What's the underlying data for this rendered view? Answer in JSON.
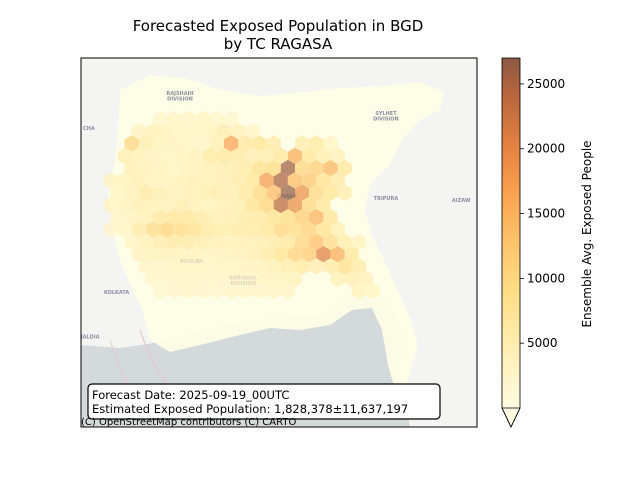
{
  "title_line1": "Forecasted Exposed Population in BGD",
  "title_line2": "by TC RAGASA",
  "colorbar": {
    "label": "Ensemble Avg. Exposed People",
    "ticks": [
      5000,
      10000,
      15000,
      20000,
      25000
    ],
    "min": 0,
    "max": 27000,
    "colors": [
      "#fffbe2",
      "#fff0b8",
      "#ffe08a",
      "#fdc26a",
      "#f9a04f",
      "#e08040",
      "#b8643c",
      "#8c5a46"
    ]
  },
  "info_box": {
    "line1": "Forecast Date: 2025-09-19_00UTC",
    "line2": "Estimated Exposed Population: 1,828,378±11,637,197"
  },
  "attribution": "(C) OpenStreetMap contributors (C) CARTO",
  "basemap_labels": [
    {
      "text": "RAJSHAHI",
      "ax": 0.25,
      "ay": 0.1
    },
    {
      "text": "DIVISION",
      "ax": 0.25,
      "ay": 0.115
    },
    {
      "text": "SYLHET",
      "ax": 0.77,
      "ay": 0.155
    },
    {
      "text": "DIVISION",
      "ax": 0.77,
      "ay": 0.17
    },
    {
      "text": "CHA",
      "ax": 0.02,
      "ay": 0.195
    },
    {
      "text": "BARISHAL",
      "ax": 0.41,
      "ay": 0.6
    },
    {
      "text": "DIVISION",
      "ax": 0.41,
      "ay": 0.615
    },
    {
      "text": "KOLKATA",
      "ax": 0.09,
      "ay": 0.64
    },
    {
      "text": "TRIPURA",
      "ax": 0.77,
      "ay": 0.385
    },
    {
      "text": "HALDIA",
      "ax": 0.02,
      "ay": 0.76
    },
    {
      "text": "KHULNA",
      "ax": 0.28,
      "ay": 0.555
    },
    {
      "text": "AIZAW",
      "ax": 0.96,
      "ay": 0.39
    },
    {
      "text": "DHAKA",
      "ax": 0.52,
      "ay": 0.38
    }
  ],
  "hexbins": [
    {
      "q": 5,
      "r": 3,
      "v": 2500
    },
    {
      "q": 6,
      "r": 3,
      "v": 3000
    },
    {
      "q": 7,
      "r": 3,
      "v": 2800
    },
    {
      "q": 8,
      "r": 3,
      "v": 3200
    },
    {
      "q": 9,
      "r": 3,
      "v": 2400
    },
    {
      "q": 10,
      "r": 3,
      "v": 2200
    },
    {
      "q": 4,
      "r": 4,
      "v": 3500
    },
    {
      "q": 5,
      "r": 4,
      "v": 4200
    },
    {
      "q": 6,
      "r": 4,
      "v": 3800
    },
    {
      "q": 7,
      "r": 4,
      "v": 3300
    },
    {
      "q": 8,
      "r": 4,
      "v": 2900
    },
    {
      "q": 9,
      "r": 4,
      "v": 3600
    },
    {
      "q": 10,
      "r": 4,
      "v": 5200
    },
    {
      "q": 11,
      "r": 4,
      "v": 4000
    },
    {
      "q": 12,
      "r": 4,
      "v": 3100
    },
    {
      "q": 3,
      "r": 5,
      "v": 9500
    },
    {
      "q": 4,
      "r": 5,
      "v": 5200
    },
    {
      "q": 5,
      "r": 5,
      "v": 3900
    },
    {
      "q": 6,
      "r": 5,
      "v": 3400
    },
    {
      "q": 7,
      "r": 5,
      "v": 3000
    },
    {
      "q": 8,
      "r": 5,
      "v": 2800
    },
    {
      "q": 9,
      "r": 5,
      "v": 4600
    },
    {
      "q": 10,
      "r": 5,
      "v": 15500
    },
    {
      "q": 11,
      "r": 5,
      "v": 6500
    },
    {
      "q": 12,
      "r": 5,
      "v": 7200
    },
    {
      "q": 13,
      "r": 5,
      "v": 5600
    },
    {
      "q": 15,
      "r": 5,
      "v": 5400
    },
    {
      "q": 16,
      "r": 5,
      "v": 6100
    },
    {
      "q": 17,
      "r": 5,
      "v": 3200
    },
    {
      "q": 3,
      "r": 6,
      "v": 4500
    },
    {
      "q": 4,
      "r": 6,
      "v": 4300
    },
    {
      "q": 5,
      "r": 6,
      "v": 3500
    },
    {
      "q": 6,
      "r": 6,
      "v": 3200
    },
    {
      "q": 7,
      "r": 6,
      "v": 3600
    },
    {
      "q": 8,
      "r": 6,
      "v": 4100
    },
    {
      "q": 9,
      "r": 6,
      "v": 6200
    },
    {
      "q": 10,
      "r": 6,
      "v": 6800
    },
    {
      "q": 11,
      "r": 6,
      "v": 5900
    },
    {
      "q": 12,
      "r": 6,
      "v": 4800
    },
    {
      "q": 13,
      "r": 6,
      "v": 5200
    },
    {
      "q": 14,
      "r": 6,
      "v": 6400
    },
    {
      "q": 15,
      "r": 6,
      "v": 14200
    },
    {
      "q": 16,
      "r": 6,
      "v": 7000
    },
    {
      "q": 17,
      "r": 6,
      "v": 5000
    },
    {
      "q": 18,
      "r": 6,
      "v": 4100
    },
    {
      "q": 3,
      "r": 7,
      "v": 4700
    },
    {
      "q": 4,
      "r": 7,
      "v": 4100
    },
    {
      "q": 5,
      "r": 7,
      "v": 3800
    },
    {
      "q": 6,
      "r": 7,
      "v": 3300
    },
    {
      "q": 7,
      "r": 7,
      "v": 3700
    },
    {
      "q": 8,
      "r": 7,
      "v": 4200
    },
    {
      "q": 9,
      "r": 7,
      "v": 4900
    },
    {
      "q": 10,
      "r": 7,
      "v": 5300
    },
    {
      "q": 11,
      "r": 7,
      "v": 6000
    },
    {
      "q": 12,
      "r": 7,
      "v": 8200
    },
    {
      "q": 13,
      "r": 7,
      "v": 8800
    },
    {
      "q": 14,
      "r": 7,
      "v": 25500
    },
    {
      "q": 15,
      "r": 7,
      "v": 9500
    },
    {
      "q": 16,
      "r": 7,
      "v": 10500
    },
    {
      "q": 17,
      "r": 7,
      "v": 13200
    },
    {
      "q": 18,
      "r": 7,
      "v": 6500
    },
    {
      "q": 2,
      "r": 8,
      "v": 3600
    },
    {
      "q": 3,
      "r": 8,
      "v": 3900
    },
    {
      "q": 4,
      "r": 8,
      "v": 4500
    },
    {
      "q": 5,
      "r": 8,
      "v": 3800
    },
    {
      "q": 6,
      "r": 8,
      "v": 3600
    },
    {
      "q": 7,
      "r": 8,
      "v": 4200
    },
    {
      "q": 8,
      "r": 8,
      "v": 4600
    },
    {
      "q": 9,
      "r": 8,
      "v": 4400
    },
    {
      "q": 10,
      "r": 8,
      "v": 4800
    },
    {
      "q": 11,
      "r": 8,
      "v": 5500
    },
    {
      "q": 12,
      "r": 8,
      "v": 7000
    },
    {
      "q": 13,
      "r": 8,
      "v": 16500
    },
    {
      "q": 14,
      "r": 8,
      "v": 24500
    },
    {
      "q": 15,
      "r": 8,
      "v": 12500
    },
    {
      "q": 16,
      "r": 8,
      "v": 11200
    },
    {
      "q": 17,
      "r": 8,
      "v": 7800
    },
    {
      "q": 18,
      "r": 8,
      "v": 5800
    },
    {
      "q": 2,
      "r": 9,
      "v": 3200
    },
    {
      "q": 3,
      "r": 9,
      "v": 4000
    },
    {
      "q": 4,
      "r": 9,
      "v": 6200
    },
    {
      "q": 5,
      "r": 9,
      "v": 5000
    },
    {
      "q": 6,
      "r": 9,
      "v": 4000
    },
    {
      "q": 7,
      "r": 9,
      "v": 4600
    },
    {
      "q": 8,
      "r": 9,
      "v": 5100
    },
    {
      "q": 9,
      "r": 9,
      "v": 5400
    },
    {
      "q": 10,
      "r": 9,
      "v": 5000
    },
    {
      "q": 11,
      "r": 9,
      "v": 6300
    },
    {
      "q": 12,
      "r": 9,
      "v": 9200
    },
    {
      "q": 13,
      "r": 9,
      "v": 12800
    },
    {
      "q": 14,
      "r": 9,
      "v": 26500
    },
    {
      "q": 15,
      "r": 9,
      "v": 17500
    },
    {
      "q": 16,
      "r": 9,
      "v": 9000
    },
    {
      "q": 17,
      "r": 9,
      "v": 7200
    },
    {
      "q": 18,
      "r": 9,
      "v": 5000
    },
    {
      "q": 2,
      "r": 10,
      "v": 3300
    },
    {
      "q": 3,
      "r": 10,
      "v": 3700
    },
    {
      "q": 4,
      "r": 10,
      "v": 4800
    },
    {
      "q": 5,
      "r": 10,
      "v": 4200
    },
    {
      "q": 6,
      "r": 10,
      "v": 4100
    },
    {
      "q": 7,
      "r": 10,
      "v": 5200
    },
    {
      "q": 8,
      "r": 10,
      "v": 4300
    },
    {
      "q": 9,
      "r": 10,
      "v": 3900
    },
    {
      "q": 10,
      "r": 10,
      "v": 4600
    },
    {
      "q": 11,
      "r": 10,
      "v": 5100
    },
    {
      "q": 12,
      "r": 10,
      "v": 7500
    },
    {
      "q": 13,
      "r": 10,
      "v": 9800
    },
    {
      "q": 14,
      "r": 10,
      "v": 23000
    },
    {
      "q": 15,
      "r": 10,
      "v": 18000
    },
    {
      "q": 16,
      "r": 10,
      "v": 9200
    },
    {
      "q": 17,
      "r": 10,
      "v": 6800
    },
    {
      "q": 2,
      "r": 11,
      "v": 2800
    },
    {
      "q": 3,
      "r": 11,
      "v": 3400
    },
    {
      "q": 4,
      "r": 11,
      "v": 4200
    },
    {
      "q": 5,
      "r": 11,
      "v": 6400
    },
    {
      "q": 6,
      "r": 11,
      "v": 7300
    },
    {
      "q": 7,
      "r": 11,
      "v": 6900
    },
    {
      "q": 8,
      "r": 11,
      "v": 5600
    },
    {
      "q": 9,
      "r": 11,
      "v": 4500
    },
    {
      "q": 10,
      "r": 11,
      "v": 4900
    },
    {
      "q": 11,
      "r": 11,
      "v": 5800
    },
    {
      "q": 12,
      "r": 11,
      "v": 6300
    },
    {
      "q": 13,
      "r": 11,
      "v": 7600
    },
    {
      "q": 14,
      "r": 11,
      "v": 8800
    },
    {
      "q": 15,
      "r": 11,
      "v": 10800
    },
    {
      "q": 16,
      "r": 11,
      "v": 13800
    },
    {
      "q": 17,
      "r": 11,
      "v": 7200
    },
    {
      "q": 2,
      "r": 12,
      "v": 2600
    },
    {
      "q": 3,
      "r": 12,
      "v": 3000
    },
    {
      "q": 4,
      "r": 12,
      "v": 5500
    },
    {
      "q": 5,
      "r": 12,
      "v": 8700
    },
    {
      "q": 6,
      "r": 12,
      "v": 9800
    },
    {
      "q": 7,
      "r": 12,
      "v": 8500
    },
    {
      "q": 8,
      "r": 12,
      "v": 7800
    },
    {
      "q": 9,
      "r": 12,
      "v": 6200
    },
    {
      "q": 10,
      "r": 12,
      "v": 5400
    },
    {
      "q": 11,
      "r": 12,
      "v": 5700
    },
    {
      "q": 12,
      "r": 12,
      "v": 6200
    },
    {
      "q": 13,
      "r": 12,
      "v": 6800
    },
    {
      "q": 14,
      "r": 12,
      "v": 9400
    },
    {
      "q": 15,
      "r": 12,
      "v": 8600
    },
    {
      "q": 16,
      "r": 12,
      "v": 10200
    },
    {
      "q": 17,
      "r": 12,
      "v": 7800
    },
    {
      "q": 18,
      "r": 12,
      "v": 4600
    },
    {
      "q": 3,
      "r": 13,
      "v": 3200
    },
    {
      "q": 4,
      "r": 13,
      "v": 4200
    },
    {
      "q": 5,
      "r": 13,
      "v": 5500
    },
    {
      "q": 6,
      "r": 13,
      "v": 6200
    },
    {
      "q": 7,
      "r": 13,
      "v": 5900
    },
    {
      "q": 8,
      "r": 13,
      "v": 5200
    },
    {
      "q": 9,
      "r": 13,
      "v": 4700
    },
    {
      "q": 10,
      "r": 13,
      "v": 4200
    },
    {
      "q": 11,
      "r": 13,
      "v": 4500
    },
    {
      "q": 12,
      "r": 13,
      "v": 5000
    },
    {
      "q": 13,
      "r": 13,
      "v": 5600
    },
    {
      "q": 14,
      "r": 13,
      "v": 6800
    },
    {
      "q": 15,
      "r": 13,
      "v": 9600
    },
    {
      "q": 16,
      "r": 13,
      "v": 12200
    },
    {
      "q": 17,
      "r": 13,
      "v": 8400
    },
    {
      "q": 18,
      "r": 13,
      "v": 5200
    },
    {
      "q": 19,
      "r": 13,
      "v": 3800
    },
    {
      "q": 4,
      "r": 14,
      "v": 3400
    },
    {
      "q": 5,
      "r": 14,
      "v": 3900
    },
    {
      "q": 6,
      "r": 14,
      "v": 4100
    },
    {
      "q": 7,
      "r": 14,
      "v": 3800
    },
    {
      "q": 8,
      "r": 14,
      "v": 3600
    },
    {
      "q": 9,
      "r": 14,
      "v": 3500
    },
    {
      "q": 10,
      "r": 14,
      "v": 3700
    },
    {
      "q": 11,
      "r": 14,
      "v": 4100
    },
    {
      "q": 12,
      "r": 14,
      "v": 4600
    },
    {
      "q": 13,
      "r": 14,
      "v": 5600
    },
    {
      "q": 14,
      "r": 14,
      "v": 7600
    },
    {
      "q": 15,
      "r": 14,
      "v": 9900
    },
    {
      "q": 16,
      "r": 14,
      "v": 11000
    },
    {
      "q": 17,
      "r": 14,
      "v": 19500
    },
    {
      "q": 18,
      "r": 14,
      "v": 14200
    },
    {
      "q": 19,
      "r": 14,
      "v": 6800
    },
    {
      "q": 4,
      "r": 15,
      "v": 2800
    },
    {
      "q": 5,
      "r": 15,
      "v": 3000
    },
    {
      "q": 6,
      "r": 15,
      "v": 3200
    },
    {
      "q": 7,
      "r": 15,
      "v": 3300
    },
    {
      "q": 8,
      "r": 15,
      "v": 3100
    },
    {
      "q": 9,
      "r": 15,
      "v": 3000
    },
    {
      "q": 10,
      "r": 15,
      "v": 3200
    },
    {
      "q": 11,
      "r": 15,
      "v": 3500
    },
    {
      "q": 12,
      "r": 15,
      "v": 3800
    },
    {
      "q": 13,
      "r": 15,
      "v": 4300
    },
    {
      "q": 14,
      "r": 15,
      "v": 5200
    },
    {
      "q": 15,
      "r": 15,
      "v": 6200
    },
    {
      "q": 16,
      "r": 15,
      "v": 4800
    },
    {
      "q": 17,
      "r": 15,
      "v": 5600
    },
    {
      "q": 18,
      "r": 15,
      "v": 8200
    },
    {
      "q": 19,
      "r": 15,
      "v": 5600
    },
    {
      "q": 5,
      "r": 16,
      "v": 2400
    },
    {
      "q": 6,
      "r": 16,
      "v": 2600
    },
    {
      "q": 7,
      "r": 16,
      "v": 2800
    },
    {
      "q": 8,
      "r": 16,
      "v": 2700
    },
    {
      "q": 9,
      "r": 16,
      "v": 2600
    },
    {
      "q": 10,
      "r": 16,
      "v": 2700
    },
    {
      "q": 11,
      "r": 16,
      "v": 2900
    },
    {
      "q": 12,
      "r": 16,
      "v": 3100
    },
    {
      "q": 13,
      "r": 16,
      "v": 3400
    },
    {
      "q": 14,
      "r": 16,
      "v": 3600
    },
    {
      "q": 15,
      "r": 16,
      "v": 3800
    },
    {
      "q": 18,
      "r": 16,
      "v": 4200
    },
    {
      "q": 19,
      "r": 16,
      "v": 4800
    },
    {
      "q": 20,
      "r": 16,
      "v": 4000
    },
    {
      "q": 5,
      "r": 17,
      "v": 2200
    },
    {
      "q": 6,
      "r": 17,
      "v": 2300
    },
    {
      "q": 7,
      "r": 17,
      "v": 2400
    },
    {
      "q": 8,
      "r": 17,
      "v": 2300
    },
    {
      "q": 9,
      "r": 17,
      "v": 2200
    },
    {
      "q": 10,
      "r": 17,
      "v": 2400
    },
    {
      "q": 11,
      "r": 17,
      "v": 2500
    },
    {
      "q": 12,
      "r": 17,
      "v": 2600
    },
    {
      "q": 13,
      "r": 17,
      "v": 2700
    },
    {
      "q": 14,
      "r": 17,
      "v": 2700
    },
    {
      "q": 19,
      "r": 17,
      "v": 3600
    },
    {
      "q": 20,
      "r": 17,
      "v": 3200
    }
  ]
}
